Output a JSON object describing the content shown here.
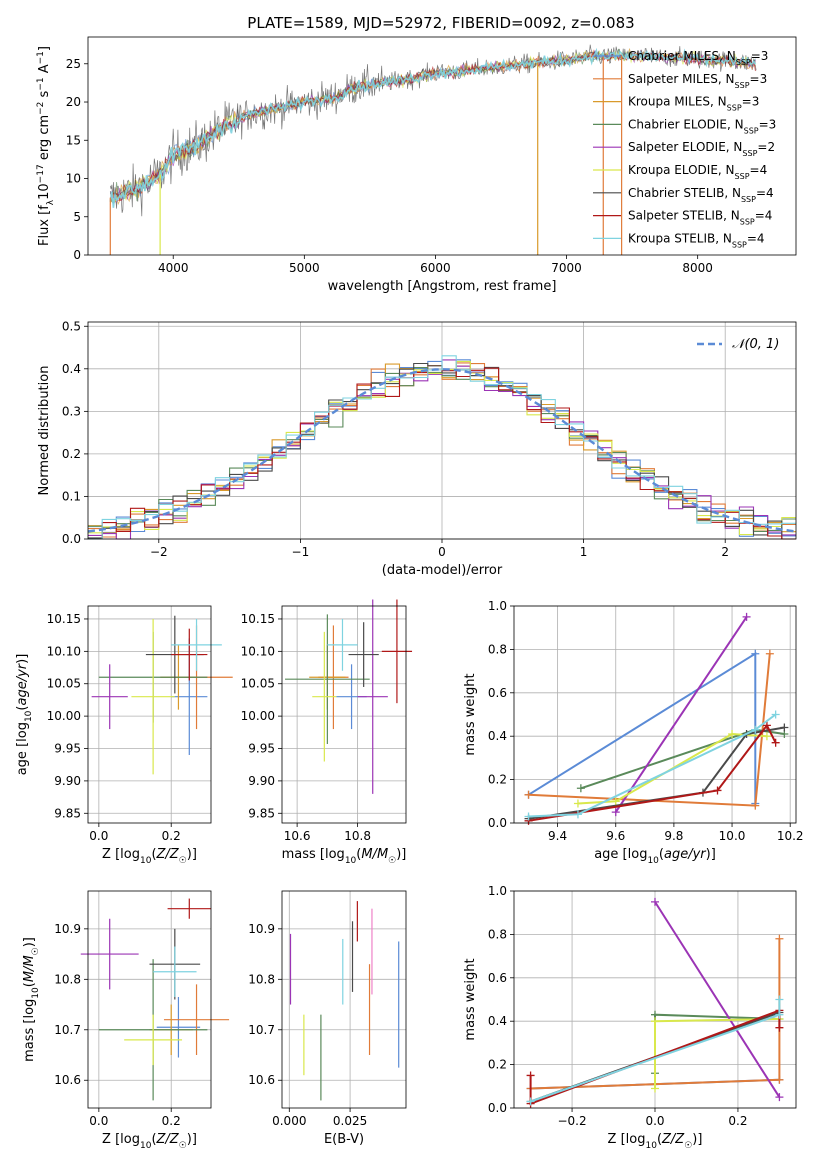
{
  "figure": {
    "title": "PLATE=1589, MJD=52972, FIBERID=0092, z=0.083"
  },
  "models": [
    {
      "name": "Chabrier MILES, N_SSP=3",
      "base": "Chabrier MILES, N",
      "sub": "SSP",
      "tail": "=3",
      "color": "#5b8bd6"
    },
    {
      "name": "Salpeter MILES, N_SSP=3",
      "base": "Salpeter MILES, N",
      "sub": "SSP",
      "tail": "=3",
      "color": "#e07b39"
    },
    {
      "name": "Kroupa MILES, N_SSP=3",
      "base": "Kroupa MILES, N",
      "sub": "SSP",
      "tail": "=3",
      "color": "#d99a2b"
    },
    {
      "name": "Chabrier ELODIE, N_SSP=3",
      "base": "Chabrier ELODIE, N",
      "sub": "SSP",
      "tail": "=3",
      "color": "#5a8a5a"
    },
    {
      "name": "Salpeter ELODIE, N_SSP=2",
      "base": "Salpeter ELODIE, N",
      "sub": "SSP",
      "tail": "=2",
      "color": "#9b34b5"
    },
    {
      "name": "Kroupa ELODIE, N_SSP=4",
      "base": "Kroupa ELODIE, N",
      "sub": "SSP",
      "tail": "=4",
      "color": "#d9e84c"
    },
    {
      "name": "Chabrier STELIB, N_SSP=4",
      "base": "Chabrier STELIB, N",
      "sub": "SSP",
      "tail": "=4",
      "color": "#4a4a4a"
    },
    {
      "name": "Salpeter STELIB, N_SSP=4",
      "base": "Salpeter STELIB, N",
      "sub": "SSP",
      "tail": "=4",
      "color": "#b01818"
    },
    {
      "name": "Kroupa STELIB, N_SSP=4",
      "base": "Kroupa STELIB, N",
      "sub": "SSP",
      "tail": "=4",
      "color": "#7fd3e0"
    }
  ],
  "chart_data": [
    {
      "id": "spectrum",
      "type": "line",
      "xlabel": "wavelength [Angstrom, rest frame]",
      "ylabel": "Flux [f_λ 10^-17 erg cm^-2 s^-1 A^-1]",
      "xlim": [
        3350,
        8750
      ],
      "ylim": [
        0,
        28.5
      ],
      "xticks": [
        4000,
        5000,
        6000,
        7000,
        8000
      ],
      "yticks": [
        0,
        5,
        10,
        15,
        20,
        25
      ],
      "continuum": [
        [
          3520,
          7.5
        ],
        [
          3700,
          8.5
        ],
        [
          3900,
          10.5
        ],
        [
          4000,
          13.0
        ],
        [
          4200,
          14.5
        ],
        [
          4400,
          17.0
        ],
        [
          4600,
          18.5
        ],
        [
          4800,
          19.2
        ],
        [
          5000,
          20.0
        ],
        [
          5200,
          20.5
        ],
        [
          5400,
          22.0
        ],
        [
          5600,
          22.5
        ],
        [
          5800,
          23.0
        ],
        [
          6000,
          23.8
        ],
        [
          6200,
          24.0
        ],
        [
          6400,
          24.5
        ],
        [
          6600,
          24.8
        ],
        [
          6800,
          25.2
        ],
        [
          7000,
          25.5
        ],
        [
          7200,
          26.0
        ],
        [
          7400,
          26.0
        ],
        [
          7600,
          26.0
        ],
        [
          7800,
          25.8
        ],
        [
          8000,
          25.6
        ],
        [
          8200,
          25.4
        ],
        [
          8450,
          25.0
        ]
      ],
      "drops": [
        {
          "x": 3520,
          "model": "Salpeter MILES, N_SSP=3"
        },
        {
          "x": 3900,
          "model": "Kroupa ELODIE, N_SSP=4"
        },
        {
          "x": 6780,
          "model": "Kroupa MILES, N_SSP=3"
        },
        {
          "x": 7280,
          "model": "Salpeter MILES, N_SSP=3"
        },
        {
          "x": 7420,
          "model": "Salpeter MILES, N_SSP=3"
        }
      ],
      "legend_position": "upper right"
    },
    {
      "id": "residual_histogram",
      "type": "histogram",
      "xlabel": "(data-model)/error",
      "ylabel": "Normed distribution",
      "xlim": [
        -2.5,
        2.5
      ],
      "ylim": [
        0,
        0.51
      ],
      "xticks": [
        -2,
        -1,
        0,
        1,
        2
      ],
      "yticks": [
        0.0,
        0.1,
        0.2,
        0.3,
        0.4,
        0.5
      ],
      "bin_width": 0.1,
      "reference_curve": {
        "label": "𝒩(0, 1)",
        "mean": 0,
        "sigma": 1,
        "color": "#5b8bd6",
        "style": "dashed"
      },
      "grid": true,
      "legend_position": "upper right"
    },
    {
      "id": "age_vs_Z",
      "type": "errorbar",
      "xlabel": "Z [log10(Z/Z☉)]",
      "ylabel": "age [log10(age/yr)]",
      "xlim": [
        -0.03,
        0.31
      ],
      "ylim": [
        9.835,
        10.17
      ],
      "xticks": [
        0.0,
        0.2
      ],
      "yticks": [
        9.85,
        9.9,
        9.95,
        10.0,
        10.05,
        10.1,
        10.15
      ],
      "points": [
        {
          "model": "Chabrier MILES, N_SSP=3",
          "x": 0.25,
          "xerr": 0.05,
          "y": 10.03,
          "yerr": 0.09
        },
        {
          "model": "Salpeter MILES, N_SSP=3",
          "x": 0.27,
          "xerr": 0.1,
          "y": 10.06,
          "yerr": 0.08
        },
        {
          "model": "Kroupa MILES, N_SSP=3",
          "x": 0.22,
          "xerr": 0.05,
          "y": 10.06,
          "yerr": 0.05
        },
        {
          "model": "Chabrier ELODIE, N_SSP=3",
          "x": 0.15,
          "xerr": 0.15,
          "y": 10.06,
          "yerr": 0.07
        },
        {
          "model": "Salpeter ELODIE, N_SSP=2",
          "x": 0.03,
          "xerr": 0.05,
          "y": 10.03,
          "yerr": 0.05
        },
        {
          "model": "Kroupa ELODIE, N_SSP=4",
          "x": 0.15,
          "xerr": 0.06,
          "y": 10.03,
          "yerr": 0.12
        },
        {
          "model": "Chabrier STELIB, N_SSP=4",
          "x": 0.21,
          "xerr": 0.08,
          "y": 10.095,
          "yerr": 0.06
        },
        {
          "model": "Salpeter STELIB, N_SSP=4",
          "x": 0.25,
          "xerr": 0.05,
          "y": 10.095,
          "yerr": 0.04
        },
        {
          "model": "Kroupa STELIB, N_SSP=4",
          "x": 0.27,
          "xerr": 0.07,
          "y": 10.11,
          "yerr": 0.04
        }
      ]
    },
    {
      "id": "age_vs_mass",
      "type": "errorbar",
      "xlabel": "mass [log10(M/M☉)]",
      "ylabel": "",
      "xlim": [
        10.55,
        10.96
      ],
      "ylim": [
        9.835,
        10.17
      ],
      "xticks": [
        10.6,
        10.8
      ],
      "yticks": [
        9.85,
        9.9,
        9.95,
        10.0,
        10.05,
        10.1,
        10.15
      ],
      "points": [
        {
          "model": "Chabrier MILES, N_SSP=3",
          "x": 10.78,
          "xerr": 0.05,
          "y": 10.03,
          "yerr": 0.05
        },
        {
          "model": "Salpeter MILES, N_SSP=3",
          "x": 10.72,
          "xerr": 0.05,
          "y": 10.06,
          "yerr": 0.08
        },
        {
          "model": "Kroupa MILES, N_SSP=3",
          "x": 10.7,
          "xerr": 0.06,
          "y": 10.06,
          "yerr": 0.05
        },
        {
          "model": "Chabrier ELODIE, N_SSP=3",
          "x": 10.7,
          "xerr": 0.14,
          "y": 10.057,
          "yerr": 0.1
        },
        {
          "model": "Salpeter ELODIE, N_SSP=2",
          "x": 10.85,
          "xerr": 0.05,
          "y": 10.03,
          "yerr": 0.15
        },
        {
          "model": "Kroupa ELODIE, N_SSP=4",
          "x": 10.69,
          "xerr": 0.04,
          "y": 10.03,
          "yerr": 0.1
        },
        {
          "model": "Chabrier STELIB, N_SSP=4",
          "x": 10.82,
          "xerr": 0.05,
          "y": 10.095,
          "yerr": 0.05
        },
        {
          "model": "Salpeter STELIB, N_SSP=4",
          "x": 10.93,
          "xerr": 0.05,
          "y": 10.1,
          "yerr": 0.08
        },
        {
          "model": "Kroupa STELIB, N_SSP=4",
          "x": 10.75,
          "xerr": 0.05,
          "y": 10.11,
          "yerr": 0.04
        }
      ]
    },
    {
      "id": "mass_weight_vs_age",
      "type": "line",
      "xlabel": "age [log10(age/yr)]",
      "ylabel": "mass weight",
      "xlim": [
        9.25,
        10.22
      ],
      "ylim": [
        0,
        1.0
      ],
      "xticks": [
        9.4,
        9.6,
        9.8,
        10.0,
        10.2
      ],
      "yticks": [
        0.0,
        0.2,
        0.4,
        0.6,
        0.8,
        1.0
      ],
      "grid": true,
      "series": [
        {
          "model": "Chabrier MILES, N_SSP=3",
          "x": [
            9.3,
            10.08,
            10.08
          ],
          "y": [
            0.13,
            0.78,
            0.09
          ]
        },
        {
          "model": "Salpeter MILES, N_SSP=3",
          "x": [
            9.3,
            10.08,
            10.13
          ],
          "y": [
            0.13,
            0.08,
            0.78
          ]
        },
        {
          "model": "Chabrier ELODIE, N_SSP=3",
          "x": [
            9.48,
            10.08,
            10.18
          ],
          "y": [
            0.16,
            0.43,
            0.41
          ]
        },
        {
          "model": "Salpeter ELODIE, N_SSP=2",
          "x": [
            9.6,
            10.05
          ],
          "y": [
            0.05,
            0.95
          ]
        },
        {
          "model": "Kroupa ELODIE, N_SSP=4",
          "x": [
            9.47,
            9.6,
            10.0,
            10.12
          ],
          "y": [
            0.09,
            0.1,
            0.41,
            0.4
          ]
        },
        {
          "model": "Chabrier STELIB, N_SSP=4",
          "x": [
            9.3,
            9.9,
            10.05,
            10.18
          ],
          "y": [
            0.02,
            0.14,
            0.41,
            0.44
          ]
        },
        {
          "model": "Salpeter STELIB, N_SSP=4",
          "x": [
            9.3,
            9.95,
            10.12,
            10.15
          ],
          "y": [
            0.01,
            0.15,
            0.45,
            0.37
          ]
        },
        {
          "model": "Kroupa STELIB, N_SSP=4",
          "x": [
            9.3,
            9.47,
            10.08,
            10.15
          ],
          "y": [
            0.03,
            0.04,
            0.43,
            0.5
          ]
        }
      ]
    },
    {
      "id": "mass_vs_Z",
      "type": "errorbar",
      "xlabel": "Z [log10(Z/Z☉)]",
      "ylabel": "mass [log10(M/M☉)]",
      "xlim": [
        -0.03,
        0.31
      ],
      "ylim": [
        10.545,
        10.975
      ],
      "xticks": [
        0.0,
        0.2
      ],
      "yticks": [
        10.6,
        10.7,
        10.8,
        10.9
      ],
      "points": [
        {
          "model": "Chabrier MILES, N_SSP=3",
          "x": 0.22,
          "xerr": 0.06,
          "y": 10.705,
          "yerr": 0.06
        },
        {
          "model": "Salpeter MILES, N_SSP=3",
          "x": 0.27,
          "xerr": 0.09,
          "y": 10.72,
          "yerr": 0.07
        },
        {
          "model": "Kroupa MILES, N_SSP=3",
          "x": 0.2,
          "xerr": 0.06,
          "y": 10.7,
          "yerr": 0.05
        },
        {
          "model": "Chabrier ELODIE, N_SSP=3",
          "x": 0.15,
          "xerr": 0.15,
          "y": 10.7,
          "yerr": 0.14
        },
        {
          "model": "Salpeter ELODIE, N_SSP=2",
          "x": 0.03,
          "xerr": 0.08,
          "y": 10.85,
          "yerr": 0.07
        },
        {
          "model": "Kroupa ELODIE, N_SSP=4",
          "x": 0.15,
          "xerr": 0.08,
          "y": 10.68,
          "yerr": 0.05
        },
        {
          "model": "Chabrier STELIB, N_SSP=4",
          "x": 0.21,
          "xerr": 0.07,
          "y": 10.83,
          "yerr": 0.07
        },
        {
          "model": "Salpeter STELIB, N_SSP=4",
          "x": 0.25,
          "xerr": 0.06,
          "y": 10.94,
          "yerr": 0.02
        },
        {
          "model": "Kroupa STELIB, N_SSP=4",
          "x": 0.21,
          "xerr": 0.06,
          "y": 10.815,
          "yerr": 0.05
        }
      ]
    },
    {
      "id": "mass_vs_EBV",
      "type": "errorbar",
      "xlabel": "E(B-V)",
      "ylabel": "",
      "xlim": [
        -0.003,
        0.048
      ],
      "ylim": [
        10.545,
        10.975
      ],
      "xticks": [
        0.0,
        0.025
      ],
      "yticks": [
        10.6,
        10.7,
        10.8,
        10.9
      ],
      "points": [
        {
          "model": "Chabrier MILES, N_SSP=3",
          "x": 0.045,
          "xerr": 0,
          "y": 10.75,
          "yerr": 0.125
        },
        {
          "model": "Salpeter MILES, N_SSP=3",
          "x": 0.033,
          "xerr": 0,
          "y": 10.74,
          "yerr": 0.09
        },
        {
          "model": "Chabrier ELODIE, N_SSP=3",
          "x": 0.013,
          "xerr": 0,
          "y": 10.645,
          "yerr": 0.085
        },
        {
          "model": "Salpeter ELODIE, N_SSP=2",
          "x": 0.0005,
          "xerr": 0,
          "y": 10.82,
          "yerr": 0.07
        },
        {
          "model": "Kroupa ELODIE, N_SSP=4",
          "x": 0.006,
          "xerr": 0,
          "y": 10.67,
          "yerr": 0.06
        },
        {
          "model": "Chabrier STELIB, N_SSP=4",
          "x": 0.026,
          "xerr": 0,
          "y": 10.845,
          "yerr": 0.07
        },
        {
          "model": "Salpeter STELIB, N_SSP=4",
          "x": 0.028,
          "xerr": 0,
          "y": 10.915,
          "yerr": 0.04
        },
        {
          "model": "Kroupa STELIB, N_SSP=4",
          "x": 0.022,
          "xerr": 0,
          "y": 10.815,
          "yerr": 0.065
        },
        {
          "model": "Salpeter ELODIE, N_SSP=2",
          "x": 0.034,
          "xerr": 0,
          "y": 10.855,
          "yerr": 0.085,
          "color_override": "#ee82c8"
        }
      ]
    },
    {
      "id": "mass_weight_vs_Z",
      "type": "line",
      "xlabel": "Z [log10(Z/Z☉)]",
      "ylabel": "mass weight",
      "xlim": [
        -0.34,
        0.34
      ],
      "ylim": [
        0,
        1.0
      ],
      "xticks": [
        -0.2,
        0.0,
        0.2
      ],
      "yticks": [
        0.0,
        0.2,
        0.4,
        0.6,
        0.8,
        1.0
      ],
      "grid": true,
      "series": [
        {
          "model": "Chabrier MILES, N_SSP=3",
          "x": [
            -0.3,
            0.3
          ],
          "y": [
            0.09,
            0.13
          ]
        },
        {
          "model": "Salpeter MILES, N_SSP=3",
          "x": [
            -0.3,
            0.3,
            0.3
          ],
          "y": [
            0.09,
            0.13,
            0.78
          ]
        },
        {
          "model": "Chabrier ELODIE, N_SSP=3",
          "x": [
            0.0,
            0.0,
            0.3
          ],
          "y": [
            0.16,
            0.43,
            0.41
          ]
        },
        {
          "model": "Salpeter ELODIE, N_SSP=2",
          "x": [
            0.0,
            0.3
          ],
          "y": [
            0.95,
            0.05
          ]
        },
        {
          "model": "Kroupa ELODIE, N_SSP=4",
          "x": [
            0.0,
            0.0,
            0.3
          ],
          "y": [
            0.09,
            0.4,
            0.41
          ]
        },
        {
          "model": "Chabrier STELIB, N_SSP=4",
          "x": [
            -0.3,
            0.3
          ],
          "y": [
            0.03,
            0.44
          ]
        },
        {
          "model": "Salpeter STELIB, N_SSP=4",
          "x": [
            -0.3,
            -0.3,
            0.3,
            0.3
          ],
          "y": [
            0.15,
            0.02,
            0.45,
            0.37
          ]
        },
        {
          "model": "Kroupa STELIB, N_SSP=4",
          "x": [
            -0.3,
            0.3,
            0.3
          ],
          "y": [
            0.03,
            0.43,
            0.5
          ]
        }
      ]
    }
  ]
}
